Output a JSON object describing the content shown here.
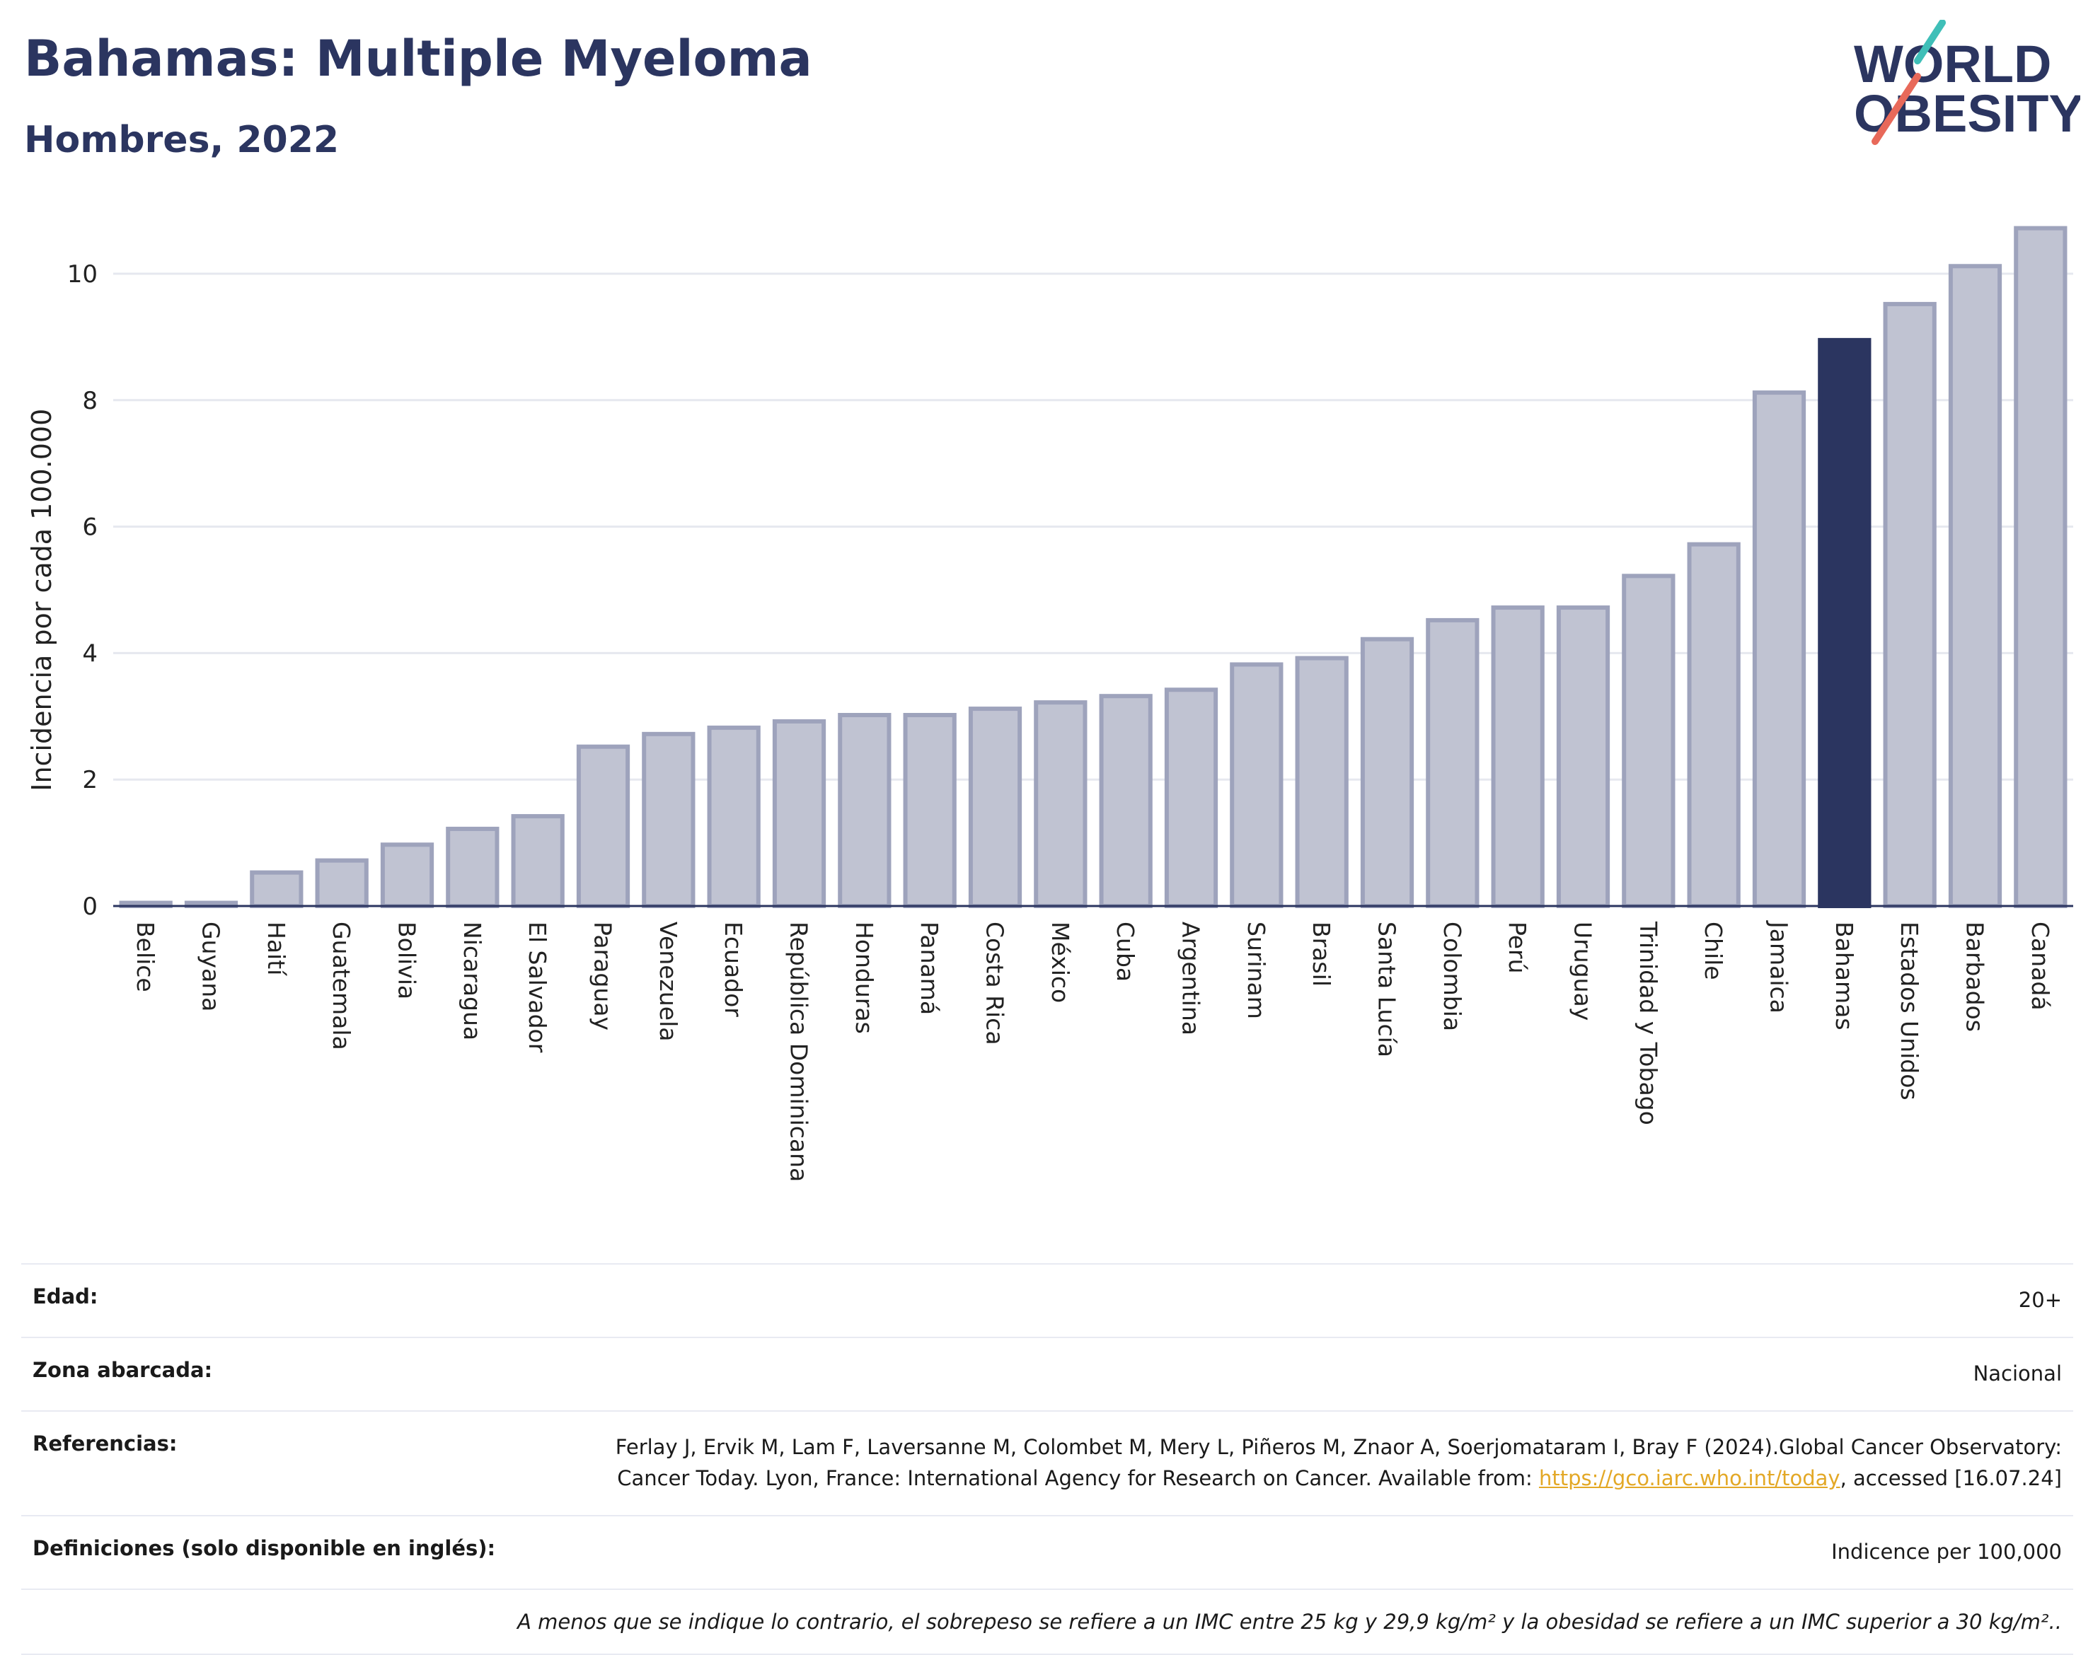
{
  "header": {
    "title": "Bahamas: Multiple Myeloma",
    "subtitle": "Hombres, 2022",
    "logo_line1": "WORLD",
    "logo_line2": "OBESITY"
  },
  "colors": {
    "bar": "#c0c3d2",
    "bar_border": "#9ea3bc",
    "highlight": "#2b3560",
    "title": "#2b3560"
  },
  "chart_data": {
    "type": "bar",
    "title": "Bahamas: Multiple Myeloma",
    "subtitle": "Hombres, 2022",
    "ylabel": "Incidencia por cada 100.000",
    "ylim": [
      0,
      10.8
    ],
    "yticks": [
      0,
      2,
      4,
      6,
      8,
      10
    ],
    "grid": true,
    "highlight": "Bahamas",
    "categories": [
      "Belice",
      "Guyana",
      "Haití",
      "Guatemala",
      "Bolivia",
      "Nicaragua",
      "El Salvador",
      "Paraguay",
      "Venezuela",
      "Ecuador",
      "República Dominicana",
      "Honduras",
      "Panamá",
      "Costa Rica",
      "México",
      "Cuba",
      "Argentina",
      "Surinam",
      "Brasil",
      "Santa Lucía",
      "Colombia",
      "Perú",
      "Uruguay",
      "Trinidad y Tobago",
      "Chile",
      "Jamaica",
      "Bahamas",
      "Estados Unidos",
      "Barbados",
      "Canadá"
    ],
    "values": [
      0.05,
      0.05,
      0.53,
      0.72,
      0.97,
      1.22,
      1.42,
      2.52,
      2.72,
      2.82,
      2.92,
      3.02,
      3.02,
      3.12,
      3.22,
      3.32,
      3.42,
      3.82,
      3.92,
      4.22,
      4.52,
      4.72,
      4.72,
      5.22,
      5.72,
      8.12,
      8.95,
      9.52,
      10.12,
      10.72
    ]
  },
  "info": {
    "age_label": "Edad:",
    "age_value": "20+",
    "zone_label": "Zona abarcada:",
    "zone_value": "Nacional",
    "ref_label": "Referencias:",
    "ref_text1": "Ferlay J, Ervik M, Lam F, Laversanne M, Colombet M, Mery L, Piñeros M, Znaor A, Soerjomataram I, Bray F (2024).Global Cancer Observatory: Cancer Today. Lyon, France: International Agency for Research on Cancer. Available from: ",
    "ref_link": "https://gco.iarc.who.int/today",
    "ref_text2": ", accessed [16.07.24]",
    "def_label": "Definiciones (solo disponible en inglés):",
    "def_value": "Indicence per 100,000",
    "note": "A menos que se indique lo contrario, el sobrepeso se refiere a un IMC entre 25 kg y 29,9 kg/m² y la obesidad se refiere a un IMC superior a 30 kg/m².."
  }
}
